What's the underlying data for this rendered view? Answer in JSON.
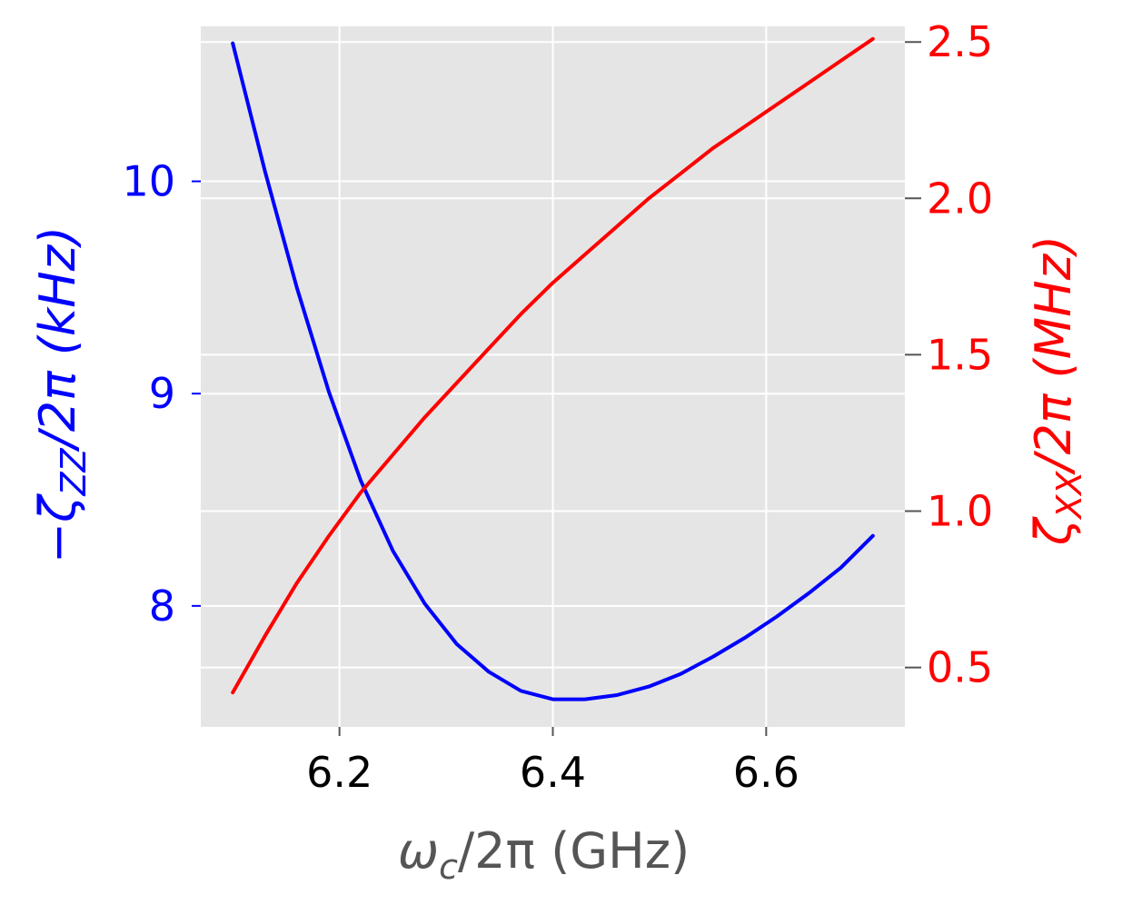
{
  "chart_data": {
    "type": "line",
    "xlabel": {
      "main": "ω",
      "sub": "c",
      "rest": "/2π (GHz)"
    },
    "ylabel_left": {
      "prefix": "−ζ",
      "sub": "ZZ",
      "rest": "/2π (kHz)"
    },
    "ylabel_right": {
      "prefix": "ζ",
      "sub": "XX",
      "rest": "/2π (MHz)"
    },
    "x_ticks": [
      6.2,
      6.4,
      6.6
    ],
    "x_tick_labels": [
      "6.2",
      "6.4",
      "6.6"
    ],
    "xlim": [
      6.07,
      6.73
    ],
    "left_ticks": [
      8,
      9,
      10
    ],
    "left_tick_labels": [
      "8",
      "9",
      "10"
    ],
    "ylim_left": [
      7.43,
      10.73
    ],
    "right_ticks": [
      0.5,
      1.0,
      1.5,
      2.0,
      2.5
    ],
    "right_tick_labels": [
      "0.5",
      "1.0",
      "1.5",
      "2.0",
      "2.5"
    ],
    "ylim_right": [
      0.31,
      2.55
    ],
    "grid": true,
    "background": "#e5e5e5",
    "colors": {
      "left_series": "#0000ff",
      "right_series": "#ff0000",
      "xlabel": "#555555",
      "xtick": "#000000"
    },
    "series": [
      {
        "axis": "left",
        "color": "#0000ff",
        "x": [
          6.1,
          6.13,
          6.16,
          6.19,
          6.22,
          6.25,
          6.28,
          6.31,
          6.34,
          6.37,
          6.4,
          6.43,
          6.46,
          6.49,
          6.52,
          6.55,
          6.58,
          6.61,
          6.64,
          6.67,
          6.7
        ],
        "y": [
          10.65,
          10.05,
          9.5,
          9.01,
          8.59,
          8.26,
          8.01,
          7.82,
          7.69,
          7.6,
          7.56,
          7.56,
          7.58,
          7.62,
          7.68,
          7.76,
          7.85,
          7.95,
          8.06,
          8.18,
          8.33
        ]
      },
      {
        "axis": "right",
        "color": "#ff0000",
        "x": [
          6.1,
          6.13,
          6.16,
          6.19,
          6.22,
          6.25,
          6.28,
          6.31,
          6.34,
          6.37,
          6.4,
          6.43,
          6.46,
          6.49,
          6.52,
          6.55,
          6.58,
          6.61,
          6.64,
          6.67,
          6.7
        ],
        "y": [
          0.42,
          0.6,
          0.77,
          0.92,
          1.06,
          1.18,
          1.3,
          1.41,
          1.52,
          1.63,
          1.73,
          1.82,
          1.91,
          2.0,
          2.08,
          2.16,
          2.23,
          2.3,
          2.37,
          2.44,
          2.51
        ]
      }
    ]
  }
}
